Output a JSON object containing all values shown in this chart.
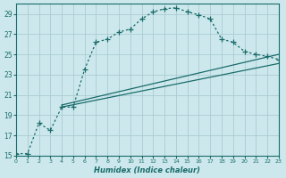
{
  "xlabel": "Humidex (Indice chaleur)",
  "bg_color": "#cce8ec",
  "line_color": "#1a6b6b",
  "grid_color": "#aaccd4",
  "xlim": [
    0,
    23
  ],
  "ylim": [
    15,
    30
  ],
  "yticks": [
    15,
    17,
    19,
    21,
    23,
    25,
    27,
    29
  ],
  "xticks": [
    0,
    1,
    2,
    3,
    4,
    5,
    6,
    7,
    8,
    9,
    10,
    11,
    12,
    13,
    14,
    15,
    16,
    17,
    18,
    19,
    20,
    21,
    22,
    23
  ],
  "curve1_x": [
    0,
    1,
    2,
    3,
    4,
    5,
    6,
    7,
    8,
    9,
    10,
    11,
    12,
    13,
    14,
    15,
    16,
    17,
    18,
    19,
    20,
    21,
    22,
    23
  ],
  "curve1_y": [
    15.2,
    15.2,
    18.2,
    17.5,
    19.8,
    19.8,
    23.5,
    26.2,
    26.5,
    27.2,
    27.5,
    28.5,
    29.2,
    29.5,
    29.6,
    29.2,
    28.9,
    28.5,
    26.5,
    26.2,
    25.3,
    25.0,
    24.8,
    24.5
  ],
  "curve2_x": [
    4,
    23
  ],
  "curve2_y": [
    20.0,
    25.0
  ],
  "curve3_x": [
    4,
    23
  ],
  "curve3_y": [
    19.8,
    24.1
  ]
}
